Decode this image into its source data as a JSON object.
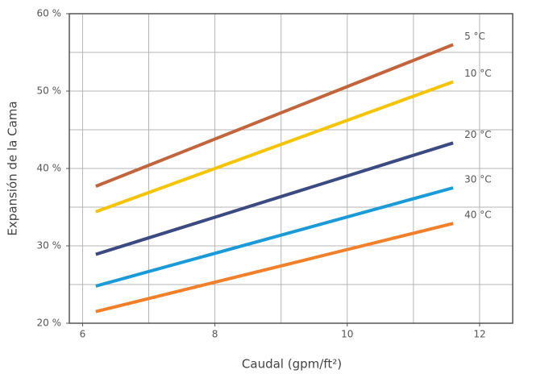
{
  "chart_data": {
    "type": "line",
    "y_label": "Expansión de la Cama",
    "x_label": "Caudal (gpm/ft²)",
    "xlim": [
      5.8,
      12.5
    ],
    "ylim": [
      20,
      60
    ],
    "xticks": [
      6,
      8,
      10,
      12
    ],
    "yticks": [
      {
        "value": 20,
        "label": "20 %"
      },
      {
        "value": 30,
        "label": "30 %"
      },
      {
        "value": 40,
        "label": "40 %"
      },
      {
        "value": 50,
        "label": "50 %"
      },
      {
        "value": 60,
        "label": "60 %"
      }
    ],
    "xgrid": [
      6,
      7,
      8,
      9,
      10,
      11,
      12
    ],
    "ygrid": [
      25,
      30,
      35,
      40,
      45,
      50,
      55
    ],
    "x": [
      6.2,
      11.6
    ],
    "series": [
      {
        "name": "5 °C",
        "color": "#c2643c",
        "values": [
          37.7,
          56
        ]
      },
      {
        "name": "10 °C",
        "color": "#f4c400",
        "values": [
          34.4,
          51.2
        ]
      },
      {
        "name": "20 °C",
        "color": "#3c4a82",
        "values": [
          28.9,
          43.3
        ]
      },
      {
        "name": "30 °C",
        "color": "#1b9ad8",
        "values": [
          24.8,
          37.5
        ]
      },
      {
        "name": "40 °C",
        "color": "#f27f2a",
        "values": [
          21.5,
          32.9
        ]
      }
    ]
  }
}
